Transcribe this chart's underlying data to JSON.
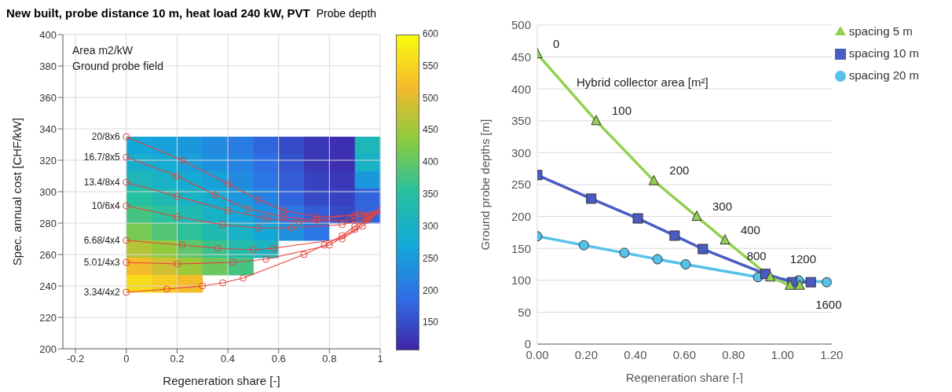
{
  "chart_data": [
    {
      "type": "heatmap",
      "clabel": "Probe depth",
      "categories": [
        null,
        null,
        null,
        null,
        null,
        null,
        null,
        null,
        null,
        null
      ],
      "y_categories": [
        null,
        null,
        null,
        null,
        null,
        null,
        null,
        null,
        null
      ],
      "clim": [
        110,
        600
      ],
      "cticks": [
        150,
        200,
        250,
        300,
        350,
        400,
        450,
        500,
        550,
        600
      ],
      "cells": [
        [
          270,
          260,
          250,
          230,
          210,
          180,
          150,
          130,
          120,
          320
        ],
        [
          290,
          280,
          260,
          240,
          220,
          190,
          160,
          130,
          120,
          300
        ],
        [
          320,
          300,
          280,
          260,
          230,
          200,
          170,
          140,
          130,
          250
        ],
        [
          350,
          330,
          300,
          280,
          250,
          220,
          180,
          150,
          140,
          180
        ],
        [
          380,
          360,
          330,
          300,
          270,
          240,
          200,
          170,
          150,
          180
        ],
        [
          420,
          390,
          360,
          330,
          300,
          270,
          240,
          200,
          null,
          null
        ],
        [
          470,
          440,
          400,
          370,
          340,
          310,
          null,
          null,
          null,
          null
        ],
        [
          520,
          490,
          450,
          410,
          380,
          null,
          null,
          null,
          null,
          null
        ],
        [
          560,
          540,
          520,
          null,
          null,
          null,
          null,
          null,
          null,
          null
        ]
      ]
    },
    {
      "type": "line",
      "title": "New built, probe distance 10 m, heat load 240 kW, PVT",
      "xlabel": "Regeneration share [-]",
      "ylabel": "Spec. annual cost [CHF/kW]",
      "annotations": [
        "Area m2/kW",
        "Ground probe field"
      ],
      "xlim": [
        -0.25,
        1
      ],
      "xticks": [
        -0.2,
        0,
        0.2,
        0.4,
        0.6,
        0.8,
        1
      ],
      "ylim": [
        200,
        400
      ],
      "yticks": [
        200,
        220,
        240,
        260,
        280,
        300,
        320,
        340,
        360,
        380,
        400
      ],
      "grid": true,
      "marker": "circle",
      "series": [
        {
          "name": "20/8x6",
          "color": "#e8413c",
          "x": [
            0,
            0.22,
            0.4,
            0.52,
            0.62,
            0.75,
            0.9,
            1
          ],
          "values": [
            335,
            320,
            305,
            295,
            288,
            284,
            285,
            288
          ]
        },
        {
          "name": "16.7/8x5",
          "color": "#e8413c",
          "x": [
            0,
            0.2,
            0.35,
            0.48,
            0.62,
            0.75,
            0.92,
            1
          ],
          "values": [
            322,
            310,
            298,
            289,
            284,
            282,
            286,
            288
          ]
        },
        {
          "name": "13.4/8x4",
          "color": "#e8413c",
          "x": [
            0,
            0.2,
            0.4,
            0.55,
            0.68,
            0.88,
            1
          ],
          "values": [
            306,
            297,
            288,
            283,
            281,
            282,
            288
          ]
        },
        {
          "name": "10/6x4",
          "color": "#e8413c",
          "x": [
            0,
            0.2,
            0.38,
            0.52,
            0.65,
            0.85,
            0.95,
            1
          ],
          "values": [
            291,
            284,
            279,
            277,
            277,
            279,
            283,
            288
          ]
        },
        {
          "name": "6.68/4x4",
          "color": "#e8413c",
          "x": [
            0,
            0.22,
            0.36,
            0.5,
            0.58,
            0.85,
            0.93,
            1
          ],
          "values": [
            269,
            266,
            264,
            263,
            264,
            270,
            278,
            288
          ]
        },
        {
          "name": "5.01/4x3",
          "color": "#e8413c",
          "x": [
            0,
            0.2,
            0.42,
            0.55,
            0.8,
            0.9,
            0.95,
            1
          ],
          "values": [
            255,
            254,
            255,
            257,
            266,
            276,
            282,
            288
          ]
        },
        {
          "name": "3.34/4x2",
          "color": "#e8413c",
          "x": [
            0,
            0.16,
            0.3,
            0.38,
            0.46,
            0.7,
            0.78,
            0.85,
            0.9,
            0.95,
            1
          ],
          "values": [
            236,
            238,
            240,
            242,
            245,
            260,
            266,
            272,
            278,
            284,
            288
          ]
        }
      ]
    },
    {
      "type": "line",
      "xlabel": "Regeneration share [-]",
      "ylabel": "Ground probe depths [m]",
      "annotations": [
        "Hybrid collector area [m²]",
        {
          "text": "0",
          "x": 0,
          "y": 455
        },
        {
          "text": "100",
          "x": 0.24,
          "y": 350
        },
        {
          "text": "200",
          "x": 0.475,
          "y": 256
        },
        {
          "text": "300",
          "x": 0.65,
          "y": 200
        },
        {
          "text": "400",
          "x": 0.765,
          "y": 163
        },
        {
          "text": "800",
          "x": 0.95,
          "y": 105
        },
        {
          "text": "1200",
          "x": 1.03,
          "y": 92
        },
        {
          "text": "1600",
          "x": 1.07,
          "y": 92
        }
      ],
      "xlim": [
        0,
        1.2
      ],
      "xticks": [
        {
          "value": 0,
          "label": "0.00"
        },
        {
          "value": 0.2,
          "label": "0.20"
        },
        {
          "value": 0.4,
          "label": "0.40"
        },
        {
          "value": 0.6,
          "label": "0.60"
        },
        {
          "value": 0.8,
          "label": "0.80"
        },
        {
          "value": 1,
          "label": "1.00"
        },
        {
          "value": 1.2,
          "label": "1.20"
        }
      ],
      "ylim": [
        0,
        500
      ],
      "yticks": [
        0,
        50,
        100,
        150,
        200,
        250,
        300,
        350,
        400,
        450,
        500
      ],
      "grid": "y",
      "legend": "top right",
      "series": [
        {
          "name": "spacing 5 m",
          "color": "#92d050",
          "marker": "triangle",
          "x": [
            0,
            0.24,
            0.475,
            0.65,
            0.765,
            0.95,
            1.03,
            1.07
          ],
          "values": [
            455,
            350,
            256,
            200,
            163,
            105,
            92,
            92
          ]
        },
        {
          "name": "spacing 10 m",
          "color": "#4a5cc4",
          "marker": "square",
          "x": [
            0,
            0.22,
            0.41,
            0.56,
            0.675,
            0.93,
            1.04,
            1.115
          ],
          "values": [
            265,
            228,
            197,
            170,
            149,
            110,
            97,
            97
          ]
        },
        {
          "name": "spacing 20 m",
          "color": "#56c1ea",
          "marker": "circle",
          "x": [
            0,
            0.19,
            0.355,
            0.49,
            0.605,
            0.9,
            1.065,
            1.18
          ],
          "values": [
            169,
            155,
            143,
            133,
            125,
            105,
            100,
            97
          ]
        }
      ]
    }
  ]
}
